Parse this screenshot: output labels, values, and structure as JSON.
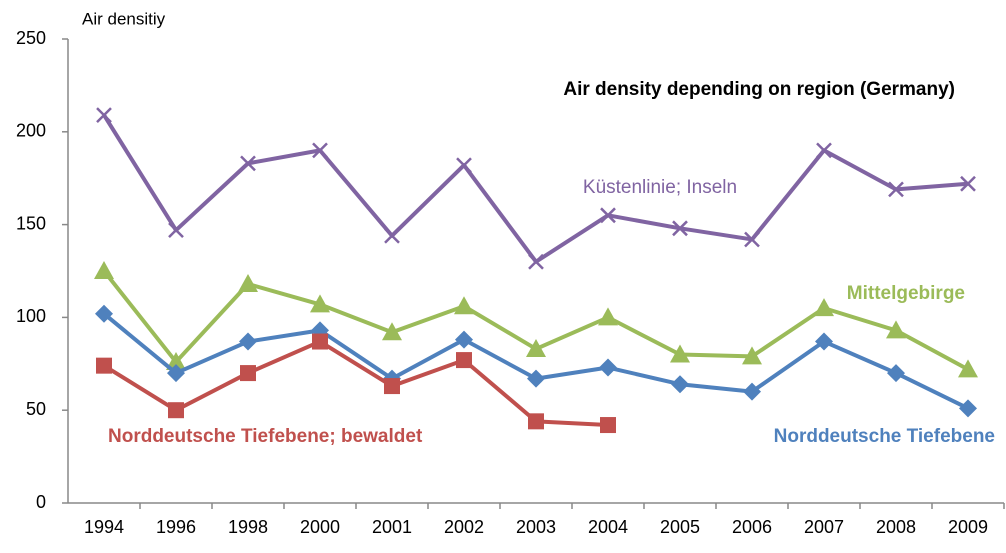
{
  "chart_data": {
    "type": "line",
    "title": "Air density depending on region (Germany)",
    "y_label": "Air densitiy",
    "categories": [
      "1994",
      "1996",
      "1998",
      "2000",
      "2001",
      "2002",
      "2003",
      "2004",
      "2005",
      "2006",
      "2007",
      "2008",
      "2009"
    ],
    "ylim": [
      0,
      250
    ],
    "yticks": [
      0,
      50,
      100,
      150,
      200,
      250
    ],
    "grid": false,
    "series": [
      {
        "name": "Küstenlinie; Inseln",
        "color": "#8064a2",
        "marker": "x",
        "values": [
          209,
          147,
          183,
          190,
          144,
          182,
          130,
          155,
          148,
          142,
          190,
          169,
          172
        ]
      },
      {
        "name": "Mittelgebirge",
        "color": "#9bbb59",
        "marker": "triangle",
        "values": [
          125,
          76,
          118,
          107,
          92,
          106,
          83,
          100,
          80,
          79,
          105,
          93,
          72
        ]
      },
      {
        "name": "Norddeutsche Tiefebene",
        "color": "#4f81bd",
        "marker": "diamond",
        "values": [
          102,
          70,
          87,
          93,
          67,
          88,
          67,
          73,
          64,
          60,
          87,
          70,
          51
        ]
      },
      {
        "name": "Norddeutsche Tiefebene; bewaldet",
        "color": "#c0504d",
        "marker": "square",
        "values": [
          74,
          50,
          70,
          87,
          63,
          77,
          44,
          42,
          null,
          null,
          null,
          null,
          null
        ]
      }
    ]
  }
}
